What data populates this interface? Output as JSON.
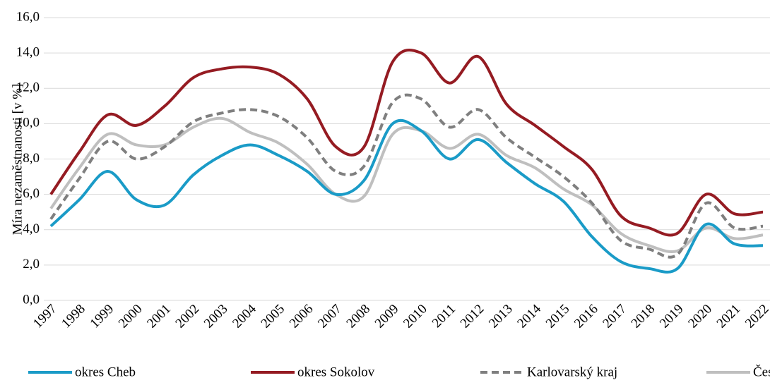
{
  "chart_data": {
    "type": "line",
    "y_label": "Míra nezaměstnanosti  [v %]",
    "categories": [
      "1997",
      "1998",
      "1999",
      "2000",
      "2001",
      "2002",
      "2003",
      "2004",
      "2005",
      "2006",
      "2007",
      "2008",
      "2009",
      "2010",
      "2011",
      "2012",
      "2013",
      "2014",
      "2015",
      "2016",
      "2017",
      "2018",
      "2019",
      "2020",
      "2021",
      "2022"
    ],
    "series": [
      {
        "name": "okres Cheb",
        "color": "#1a9bc7",
        "values": [
          4.2,
          5.7,
          7.3,
          5.7,
          5.4,
          7.1,
          8.2,
          8.8,
          8.2,
          7.3,
          6.0,
          6.8,
          10.0,
          9.6,
          8.0,
          9.1,
          7.8,
          6.6,
          5.6,
          3.6,
          2.2,
          1.8,
          1.8,
          4.3,
          3.2,
          3.1
        ]
      },
      {
        "name": "okres Sokolov",
        "color": "#951b22",
        "values": [
          6.0,
          8.4,
          10.5,
          9.9,
          11.0,
          12.6,
          13.1,
          13.2,
          12.8,
          11.4,
          8.7,
          8.7,
          13.5,
          14.0,
          12.3,
          13.8,
          11.1,
          9.9,
          8.7,
          7.4,
          4.8,
          4.1,
          3.8,
          6.0,
          4.9,
          5.0
        ]
      },
      {
        "name": "Karlovarský kraj",
        "color": "#7f7f7f",
        "dash": true,
        "values": [
          4.6,
          6.9,
          9.0,
          8.0,
          8.7,
          10.1,
          10.6,
          10.8,
          10.4,
          9.2,
          7.3,
          7.6,
          11.2,
          11.4,
          9.8,
          10.8,
          9.2,
          8.1,
          7.0,
          5.5,
          3.4,
          2.9,
          2.6,
          5.5,
          4.1,
          4.2
        ]
      },
      {
        "name": "Česko",
        "color": "#bfbfbf",
        "values": [
          5.2,
          7.5,
          9.4,
          8.8,
          8.8,
          9.8,
          10.3,
          9.5,
          8.9,
          7.7,
          6.0,
          5.9,
          9.4,
          9.6,
          8.6,
          9.4,
          8.2,
          7.5,
          6.3,
          5.4,
          3.8,
          3.1,
          2.8,
          4.1,
          3.5,
          3.7
        ]
      }
    ],
    "ylim": [
      0,
      16
    ],
    "yticks": [
      {
        "value": 0,
        "label": "0,0"
      },
      {
        "value": 2,
        "label": "2,0"
      },
      {
        "value": 4,
        "label": "4,0"
      },
      {
        "value": 6,
        "label": "6,0"
      },
      {
        "value": 8,
        "label": "8,0"
      },
      {
        "value": 10,
        "label": "10,0"
      },
      {
        "value": 12,
        "label": "12,0"
      },
      {
        "value": 14,
        "label": "14,0"
      },
      {
        "value": 16,
        "label": "16,0"
      }
    ],
    "grid": true,
    "legend": "bottom"
  }
}
